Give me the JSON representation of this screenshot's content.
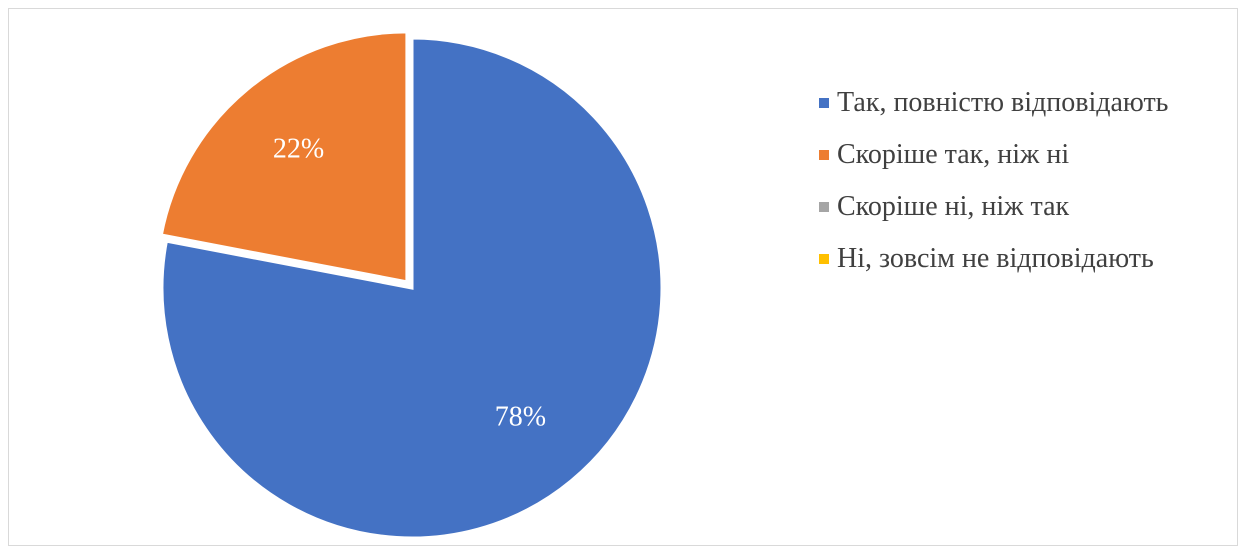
{
  "chart_data": {
    "type": "pie",
    "title": "",
    "categories": [
      "Так, повністю відповідають",
      "Скоріше так, ніж ні",
      "Скоріше ні, ніж так",
      "Ні, зовсім не відповідають"
    ],
    "values": [
      78,
      22,
      0,
      0
    ],
    "data_labels": [
      "78%",
      "22%",
      "",
      ""
    ],
    "colors": [
      "#4472C4",
      "#ED7D31",
      "#A5A5A5",
      "#FFC000"
    ],
    "label_color": "#ffffff",
    "legend_position": "right",
    "exploded_slice": "Скоріше так, ніж ні"
  }
}
